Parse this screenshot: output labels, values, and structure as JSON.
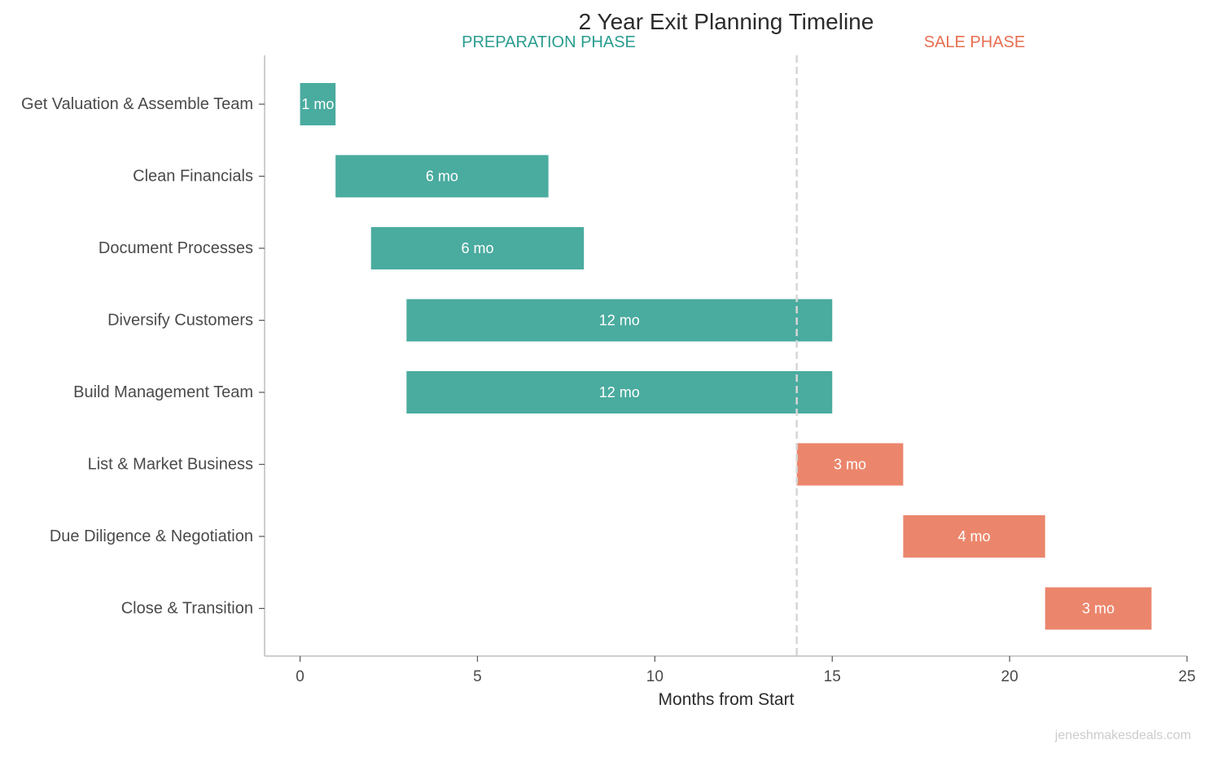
{
  "chart_data": {
    "type": "bar",
    "orientation": "horizontal",
    "title": "2 Year Exit Planning Timeline",
    "xlabel": "Months from Start",
    "ylabel": "",
    "xlim": [
      -1,
      25
    ],
    "xticks": [
      0,
      5,
      10,
      15,
      20,
      25
    ],
    "grid": false,
    "divider": {
      "x": 14,
      "style": "dashed",
      "color": "#d6d6d6"
    },
    "phases": [
      {
        "label": "PREPARATION PHASE",
        "color": "#2a9d8f"
      },
      {
        "label": "SALE PHASE",
        "color": "#e76f51"
      }
    ],
    "colors": {
      "preparation": "#4aab9f",
      "sale": "#eb866c"
    },
    "tasks": [
      {
        "name": "Get Valuation & Assemble Team",
        "start": 0,
        "duration": 1,
        "label": "1 mo",
        "phase": "preparation"
      },
      {
        "name": "Clean Financials",
        "start": 1,
        "duration": 6,
        "label": "6 mo",
        "phase": "preparation"
      },
      {
        "name": "Document Processes",
        "start": 2,
        "duration": 6,
        "label": "6 mo",
        "phase": "preparation"
      },
      {
        "name": "Diversify Customers",
        "start": 3,
        "duration": 12,
        "label": "12 mo",
        "phase": "preparation"
      },
      {
        "name": "Build Management Team",
        "start": 3,
        "duration": 12,
        "label": "12 mo",
        "phase": "preparation"
      },
      {
        "name": "List & Market Business",
        "start": 14,
        "duration": 3,
        "label": "3 mo",
        "phase": "sale"
      },
      {
        "name": "Due Diligence & Negotiation",
        "start": 17,
        "duration": 4,
        "label": "4 mo",
        "phase": "sale"
      },
      {
        "name": "Close & Transition",
        "start": 21,
        "duration": 3,
        "label": "3 mo",
        "phase": "sale"
      }
    ]
  },
  "watermark": "jeneshmakesdeals.com"
}
